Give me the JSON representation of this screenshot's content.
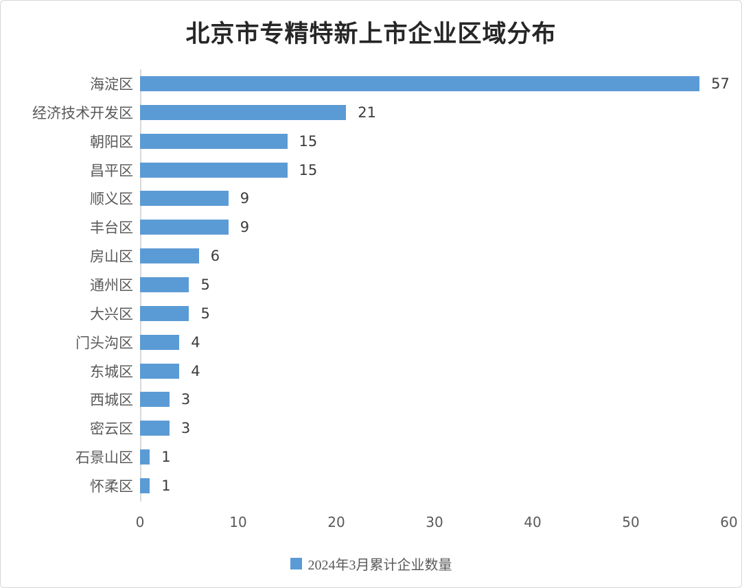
{
  "window": {
    "background_color": "#ffffff",
    "border_color": "#d6d6d6"
  },
  "chart_data": {
    "type": "bar",
    "orientation": "horizontal",
    "title": "北京市专精特新上市企业区域分布",
    "categories": [
      "海淀区",
      "经济技术开发区",
      "朝阳区",
      "昌平区",
      "顺义区",
      "丰台区",
      "房山区",
      "通州区",
      "大兴区",
      "门头沟区",
      "东城区",
      "西城区",
      "密云区",
      "石景山区",
      "怀柔区"
    ],
    "values": [
      57,
      21,
      15,
      15,
      9,
      9,
      6,
      5,
      5,
      4,
      4,
      3,
      3,
      1,
      1
    ],
    "series_name": "2024年3月累计企业数量",
    "xlim": [
      0,
      60
    ],
    "x_ticks": [
      "0",
      "10",
      "20",
      "30",
      "40",
      "50",
      "60"
    ],
    "grid": false,
    "data_labels": true,
    "bar_color": "#5b9bd5",
    "axis_line_color": "#d9d9d9",
    "title_color": "#262626",
    "category_label_color": "#595959",
    "value_label_color": "#3b3b3b",
    "tick_label_color": "#595959",
    "legend": {
      "position": "bottom",
      "label": "2024年3月累计企业数量",
      "marker": "square-icon",
      "marker_color": "#5b9bd5"
    }
  }
}
